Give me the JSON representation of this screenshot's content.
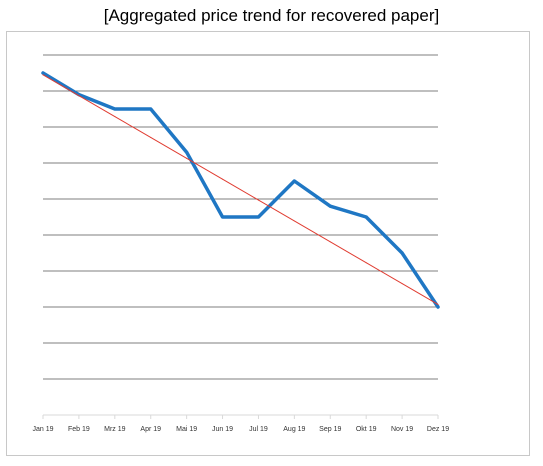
{
  "chart_data": {
    "type": "line",
    "title": "[Aggregated price trend for recovered paper]",
    "xlabel": "",
    "ylabel": "",
    "categories": [
      "Jan 19",
      "Feb 19",
      "Mrz 19",
      "Apr 19",
      "Mai 19",
      "Jun 19",
      "Jul 19",
      "Aug 19",
      "Sep 19",
      "Okt 19",
      "Nov 19",
      "Dez 19"
    ],
    "ylim": [
      0,
      10.5
    ],
    "y_gridlines": [
      1,
      2,
      3,
      4,
      5,
      6,
      7,
      8,
      9,
      10
    ],
    "y_ticks_labeled": false,
    "grid": true,
    "legend": "none",
    "series": [
      {
        "values": [
          9.5,
          8.9,
          8.5,
          8.5,
          7.3,
          5.5,
          5.5,
          6.5,
          5.8,
          5.5,
          4.5,
          3.0
        ],
        "color": "#1f77c4",
        "style": "thick"
      },
      {
        "values": [
          9.45,
          8.87,
          8.29,
          7.71,
          7.13,
          6.55,
          5.97,
          5.39,
          4.81,
          4.23,
          3.65,
          3.07
        ],
        "color": "#e03c31",
        "style": "thin-trendline"
      }
    ]
  }
}
